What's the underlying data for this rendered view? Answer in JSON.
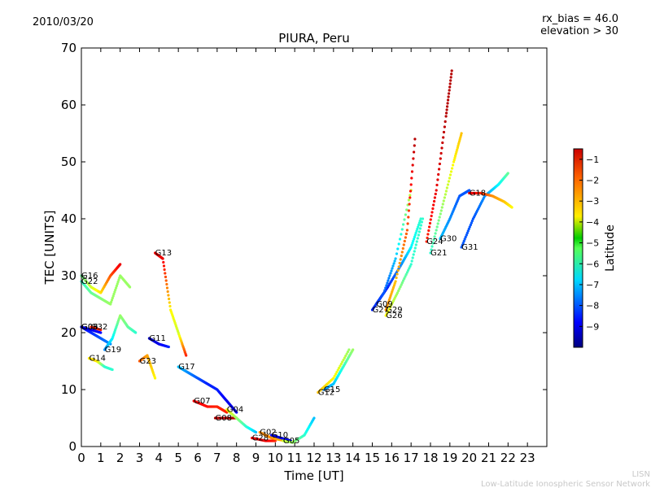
{
  "header": {
    "date": "2010/03/20",
    "rx_bias": "rx_bias = 46.0",
    "elevation": "elevation > 30"
  },
  "footer": {
    "network_short": "LISN",
    "network_full": "Low-Latitude Ionospheric Sensor Network"
  },
  "chart_data": {
    "type": "scatter",
    "title": "PIURA, Peru",
    "xlabel": "Time [UT]",
    "ylabel": "TEC [UNITS]",
    "xlim": [
      0,
      24
    ],
    "ylim": [
      0,
      70
    ],
    "xticks": [
      0,
      1,
      2,
      3,
      4,
      5,
      6,
      7,
      8,
      9,
      10,
      11,
      12,
      13,
      14,
      15,
      16,
      17,
      18,
      19,
      20,
      21,
      22,
      23
    ],
    "yticks": [
      0,
      10,
      20,
      30,
      40,
      50,
      60,
      70
    ],
    "grid": false,
    "colorbar": {
      "label": "Latitude",
      "range": [
        -10,
        -0.5
      ],
      "ticks": [
        -1,
        -2,
        -3,
        -4,
        -5,
        -6,
        -7,
        -8,
        -9
      ],
      "colormap": [
        "#00007f",
        "#0000ff",
        "#007fff",
        "#00ffff",
        "#7fff7f",
        "#ffff00",
        "#ff7f00",
        "#ff0000",
        "#7f0000"
      ]
    },
    "series": [
      {
        "name": "G16",
        "x": [
          0.0,
          0.5,
          1.0,
          1.5,
          2.0
        ],
        "y": [
          30,
          28,
          27,
          30,
          32
        ],
        "lat": [
          -5.5,
          -4.5,
          -3.8,
          -2.5,
          -1.5
        ]
      },
      {
        "name": "G22",
        "x": [
          0.0,
          0.5,
          1.0,
          1.5,
          2.0,
          2.5
        ],
        "y": [
          29,
          27,
          26,
          25,
          30,
          28
        ],
        "lat": [
          -6,
          -5.5,
          -5.2,
          -5,
          -5,
          -5
        ]
      },
      {
        "name": "G06",
        "x": [
          0.0,
          0.5,
          1.0,
          1.5
        ],
        "y": [
          21,
          20,
          19,
          18
        ],
        "lat": [
          -8.8,
          -8.5,
          -8,
          -7.5
        ]
      },
      {
        "name": "G03",
        "x": [
          0.0,
          0.5,
          1.0
        ],
        "y": [
          21,
          20.5,
          20
        ],
        "lat": [
          -9.2,
          -9,
          -8.8
        ]
      },
      {
        "name": "G32",
        "x": [
          0.5,
          1.0
        ],
        "y": [
          21,
          20.5
        ],
        "lat": [
          -2,
          -2
        ]
      },
      {
        "name": "G14",
        "x": [
          0.4,
          0.8,
          1.2,
          1.6
        ],
        "y": [
          15.5,
          15,
          14,
          13.5
        ],
        "lat": [
          -3.8,
          -3.8,
          -6,
          -6
        ]
      },
      {
        "name": "G19",
        "x": [
          1.2,
          1.6,
          2.0,
          2.4,
          2.8
        ],
        "y": [
          17,
          19,
          23,
          21,
          20
        ],
        "lat": [
          -7.5,
          -6.5,
          -5,
          -5.5,
          -6
        ]
      },
      {
        "name": "G23",
        "x": [
          3.0,
          3.4,
          3.8
        ],
        "y": [
          15,
          16,
          12
        ],
        "lat": [
          -2.5,
          -3.2,
          -4
        ]
      },
      {
        "name": "G11",
        "x": [
          3.5,
          4.0,
          4.5
        ],
        "y": [
          19,
          18,
          17.5
        ],
        "lat": [
          -9.5,
          -9,
          -8.5
        ]
      },
      {
        "name": "G13",
        "x": [
          3.8,
          4.2,
          4.6,
          5.0,
          5.4
        ],
        "y": [
          34,
          33,
          24,
          20,
          16
        ],
        "lat": [
          -1.5,
          -1.5,
          -4,
          -4.5,
          -2
        ]
      },
      {
        "name": "G17",
        "x": [
          5.0,
          5.5,
          6.0,
          6.5,
          7.0,
          7.5,
          8.0
        ],
        "y": [
          14,
          13,
          12,
          11,
          10,
          8,
          6
        ],
        "lat": [
          -7,
          -7.5,
          -8,
          -8.5,
          -8.5,
          -9,
          -9
        ]
      },
      {
        "name": "G07",
        "x": [
          5.8,
          6.5,
          7.0,
          7.5
        ],
        "y": [
          8,
          7,
          7,
          6
        ],
        "lat": [
          -1.5,
          -1.8,
          -2,
          -2
        ]
      },
      {
        "name": "G08",
        "x": [
          6.9,
          7.5,
          8.0
        ],
        "y": [
          5,
          5,
          5
        ],
        "lat": [
          -1,
          -1,
          -1
        ]
      },
      {
        "name": "G04",
        "x": [
          7.5,
          8.0,
          8.5,
          9.0
        ],
        "y": [
          6.5,
          5,
          3.5,
          2.5
        ],
        "lat": [
          -4,
          -5,
          -6,
          -7
        ]
      },
      {
        "name": "G28",
        "x": [
          8.8,
          9.5,
          10.0
        ],
        "y": [
          1.5,
          1,
          1
        ],
        "lat": [
          -1.5,
          -1.5,
          -2
        ]
      },
      {
        "name": "G02",
        "x": [
          9.2,
          9.8,
          10.5,
          11.0
        ],
        "y": [
          2.5,
          1.5,
          1,
          0.8
        ],
        "lat": [
          -3,
          -3,
          -3.5,
          -4
        ]
      },
      {
        "name": "G10",
        "x": [
          9.8,
          10.3,
          10.8
        ],
        "y": [
          2,
          1.5,
          1
        ],
        "lat": [
          -9,
          -9,
          -9
        ]
      },
      {
        "name": "G05",
        "x": [
          10.4,
          10.9,
          11.5,
          12.0
        ],
        "y": [
          1,
          0.7,
          2,
          5
        ],
        "lat": [
          -4.5,
          -5,
          -6,
          -7
        ]
      },
      {
        "name": "G15",
        "x": [
          12.5,
          13.0,
          13.5,
          14.0
        ],
        "y": [
          10,
          11,
          14,
          17
        ],
        "lat": [
          -7.5,
          -7,
          -6,
          -5
        ]
      },
      {
        "name": "G12",
        "x": [
          12.2,
          13.0,
          13.8
        ],
        "y": [
          9.5,
          12,
          17
        ],
        "lat": [
          -3.5,
          -4,
          -5
        ]
      },
      {
        "name": "G09",
        "x": [
          15.2,
          15.8,
          16.5,
          17.0,
          17.5
        ],
        "y": [
          25,
          28,
          32,
          35,
          40
        ],
        "lat": [
          -9,
          -8.5,
          -7.5,
          -6.5,
          -6
        ]
      },
      {
        "name": "G27",
        "x": [
          15.0,
          15.6,
          16.2,
          17.0
        ],
        "y": [
          24,
          27,
          33,
          45
        ],
        "lat": [
          -8.5,
          -8,
          -7,
          -4.5
        ]
      },
      {
        "name": "G29",
        "x": [
          15.7,
          16.2,
          16.8,
          17.2
        ],
        "y": [
          24,
          29,
          38,
          54
        ],
        "lat": [
          -3,
          -3.5,
          -2.5,
          -1
        ]
      },
      {
        "name": "G26",
        "x": [
          15.7,
          16.3,
          17.0,
          17.6
        ],
        "y": [
          23,
          27,
          32,
          40
        ],
        "lat": [
          -4,
          -5,
          -6,
          -6
        ]
      },
      {
        "name": "G24",
        "x": [
          17.8,
          18.3,
          18.8,
          19.1
        ],
        "y": [
          36,
          45,
          58,
          66
        ],
        "lat": [
          -2,
          -1.5,
          -1,
          -1
        ]
      },
      {
        "name": "G21",
        "x": [
          18.0,
          18.6,
          19.2,
          19.6
        ],
        "y": [
          34,
          42,
          50,
          55
        ],
        "lat": [
          -6,
          -5,
          -4,
          -3.5
        ]
      },
      {
        "name": "G30",
        "x": [
          18.5,
          19.0,
          19.5,
          20.0
        ],
        "y": [
          36.5,
          40,
          44,
          45
        ],
        "lat": [
          -7,
          -7.5,
          -8,
          -8
        ]
      },
      {
        "name": "G31",
        "x": [
          19.6,
          20.2,
          20.8,
          21.5,
          22.0
        ],
        "y": [
          35,
          40,
          44,
          46,
          48
        ],
        "lat": [
          -8,
          -8,
          -7.5,
          -6.5,
          -5.5
        ]
      },
      {
        "name": "G18",
        "x": [
          20.0,
          20.6,
          21.2,
          21.8,
          22.2
        ],
        "y": [
          44.5,
          44.5,
          44,
          43,
          42
        ],
        "lat": [
          -1.5,
          -2,
          -3,
          -3.5,
          -4
        ]
      }
    ],
    "point_labels": [
      "G16",
      "G22",
      "G06",
      "G03",
      "G32",
      "G14",
      "G19",
      "G23",
      "G11",
      "G13",
      "G17",
      "G07",
      "G08",
      "G04",
      "G28",
      "G02",
      "G10",
      "G05",
      "G15",
      "G12",
      "G09",
      "G27",
      "G29",
      "G26",
      "G24",
      "G21",
      "G30",
      "G31",
      "G18"
    ]
  }
}
